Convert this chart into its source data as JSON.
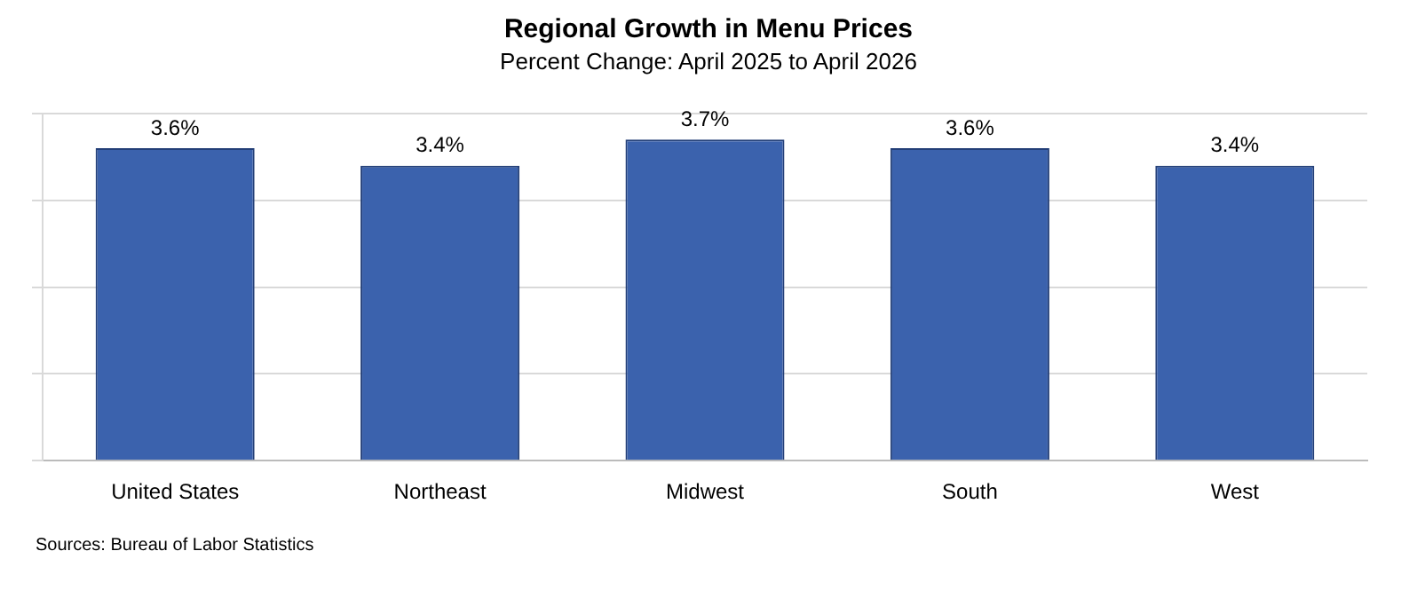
{
  "chart_data": {
    "type": "bar",
    "title": "Regional Growth in Menu Prices",
    "subtitle": "Percent Change: April 2025 to April 2026",
    "categories": [
      "United States",
      "Northeast",
      "Midwest",
      "South",
      "West"
    ],
    "values": [
      3.6,
      3.4,
      3.7,
      3.6,
      3.4
    ],
    "value_labels": [
      "3.6%",
      "3.4%",
      "3.7%",
      "3.6%",
      "3.4%"
    ],
    "color": "#3b62ad",
    "ylim": [
      0,
      4
    ],
    "yticks": [
      {
        "value": 0,
        "label": null
      },
      {
        "value": 1,
        "label": null
      },
      {
        "value": 2,
        "label": null
      },
      {
        "value": 3,
        "label": null
      },
      {
        "value": 4,
        "label": null
      }
    ],
    "grid": "y",
    "tick_labels": "x",
    "legend": false,
    "annotations": [
      "Sources: Bureau of Labor Statistics"
    ]
  }
}
